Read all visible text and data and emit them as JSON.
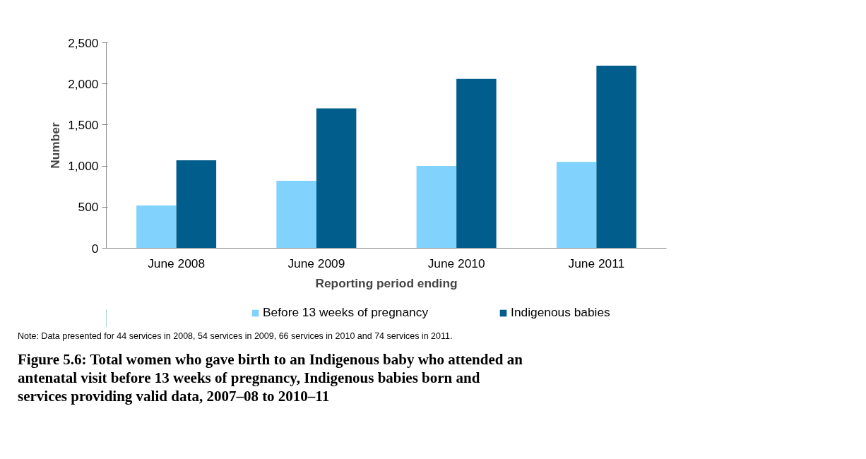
{
  "chart_data": {
    "type": "bar",
    "title": "Figure 5.6: Total women who gave birth to an Indigenous baby who attended an antenatal visit before 13 weeks of pregnancy, Indigenous babies born and services providing valid data, 2007–08 to 2010–11",
    "xlabel": "Reporting period ending",
    "ylabel": "Number",
    "categories": [
      "June 2008",
      "June 2009",
      "June 2010",
      "June 2011"
    ],
    "series": [
      {
        "name": "Before 13 weeks of pregnancy",
        "color": "#81d3fe",
        "values": [
          520,
          820,
          1000,
          1050
        ]
      },
      {
        "name": "Indigenous babies",
        "color": "#005d8c",
        "values": [
          1070,
          1700,
          2060,
          2220
        ]
      }
    ],
    "ylim": [
      0,
      2500
    ],
    "yticks": [
      0,
      {
        "value": 500,
        "label": "500"
      },
      {
        "value": 1000,
        "label": "1,000"
      },
      {
        "value": 1500,
        "label": "1,500"
      },
      {
        "value": 2000,
        "label": "2,000"
      },
      {
        "value": 2500,
        "label": "2,500"
      }
    ],
    "grid": false,
    "legend": "bottom",
    "annotations": [
      "Note: Data presented for 44 services in 2008, 54 services in 2009, 66 services in 2010 and 74 services in 2011."
    ]
  }
}
